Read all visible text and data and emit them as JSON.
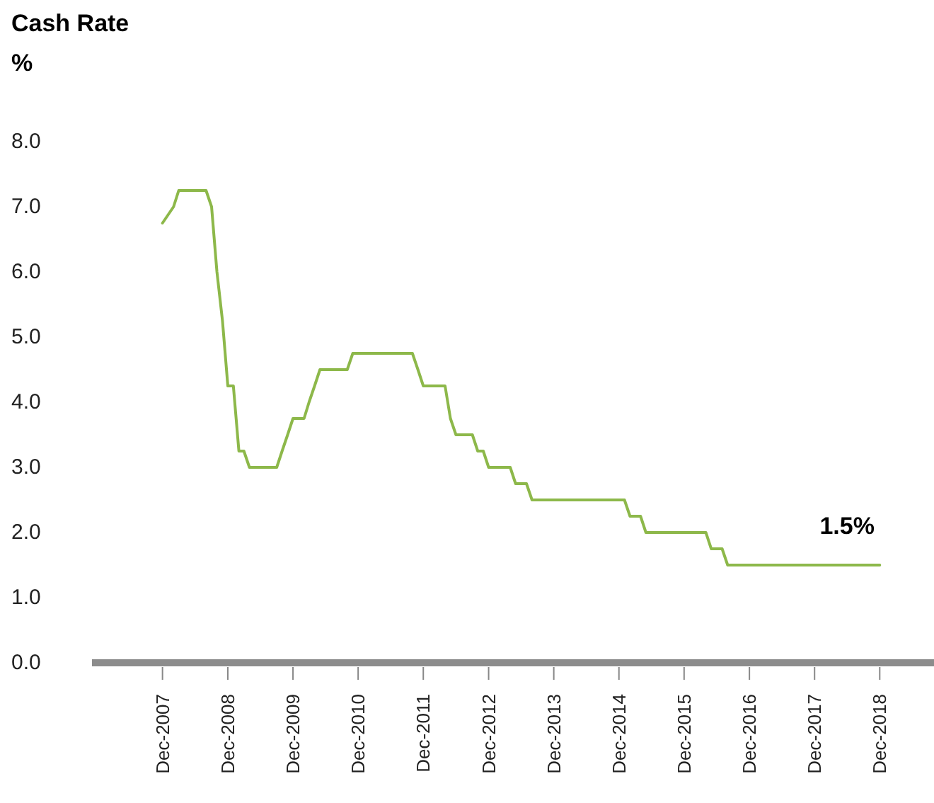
{
  "chart_data": {
    "type": "line",
    "title": "Cash Rate",
    "ylabel": "%",
    "x": [
      "2007-12",
      "2008-02",
      "2008-03",
      "2008-08",
      "2008-09",
      "2008-10",
      "2008-11",
      "2008-12",
      "2009-01",
      "2009-02",
      "2009-03",
      "2009-04",
      "2009-09",
      "2009-10",
      "2009-11",
      "2009-12",
      "2010-02",
      "2010-03",
      "2010-04",
      "2010-05",
      "2010-10",
      "2010-11",
      "2011-10",
      "2011-11",
      "2011-12",
      "2012-04",
      "2012-05",
      "2012-06",
      "2012-09",
      "2012-10",
      "2012-11",
      "2012-12",
      "2013-04",
      "2013-05",
      "2013-07",
      "2013-08",
      "2015-01",
      "2015-02",
      "2015-04",
      "2015-05",
      "2016-04",
      "2016-05",
      "2016-07",
      "2016-08",
      "2018-12"
    ],
    "series": [
      {
        "color": "#8db84a",
        "values": [
          6.75,
          7.0,
          7.25,
          7.25,
          7.0,
          6.0,
          5.25,
          4.25,
          4.25,
          3.25,
          3.25,
          3.0,
          3.0,
          3.25,
          3.5,
          3.75,
          3.75,
          4.0,
          4.25,
          4.5,
          4.5,
          4.75,
          4.75,
          4.5,
          4.25,
          4.25,
          3.75,
          3.5,
          3.5,
          3.25,
          3.25,
          3.0,
          3.0,
          2.75,
          2.75,
          2.5,
          2.5,
          2.25,
          2.25,
          2.0,
          2.0,
          1.75,
          1.75,
          1.5,
          1.5
        ]
      }
    ],
    "xlim": [
      "2006-11",
      "2019-10"
    ],
    "xticks": [
      {
        "value": "2007-12",
        "label": "Dec-2007"
      },
      {
        "value": "2008-12",
        "label": "Dec-2008"
      },
      {
        "value": "2009-12",
        "label": "Dec-2009"
      },
      {
        "value": "2010-12",
        "label": "Dec-2010"
      },
      {
        "value": "2011-12",
        "label": "Dec-2011"
      },
      {
        "value": "2012-12",
        "label": "Dec-2012"
      },
      {
        "value": "2013-12",
        "label": "Dec-2013"
      },
      {
        "value": "2014-12",
        "label": "Dec-2014"
      },
      {
        "value": "2015-12",
        "label": "Dec-2015"
      },
      {
        "value": "2016-12",
        "label": "Dec-2016"
      },
      {
        "value": "2017-12",
        "label": "Dec-2017"
      },
      {
        "value": "2018-12",
        "label": "Dec-2018"
      }
    ],
    "ylim": [
      0,
      8
    ],
    "yticks": [
      {
        "value": 0,
        "label": "0.0"
      },
      {
        "value": 1,
        "label": "1.0"
      },
      {
        "value": 2,
        "label": "2.0"
      },
      {
        "value": 3,
        "label": "3.0"
      },
      {
        "value": 4,
        "label": "4.0"
      },
      {
        "value": 5,
        "label": "5.0"
      },
      {
        "value": 6,
        "label": "6.0"
      },
      {
        "value": 7,
        "label": "7.0"
      },
      {
        "value": 8,
        "label": "8.0"
      }
    ],
    "annotations": [
      {
        "text": "1.5%",
        "x": "2018-06",
        "y": 1.5
      }
    ],
    "grid": false
  }
}
